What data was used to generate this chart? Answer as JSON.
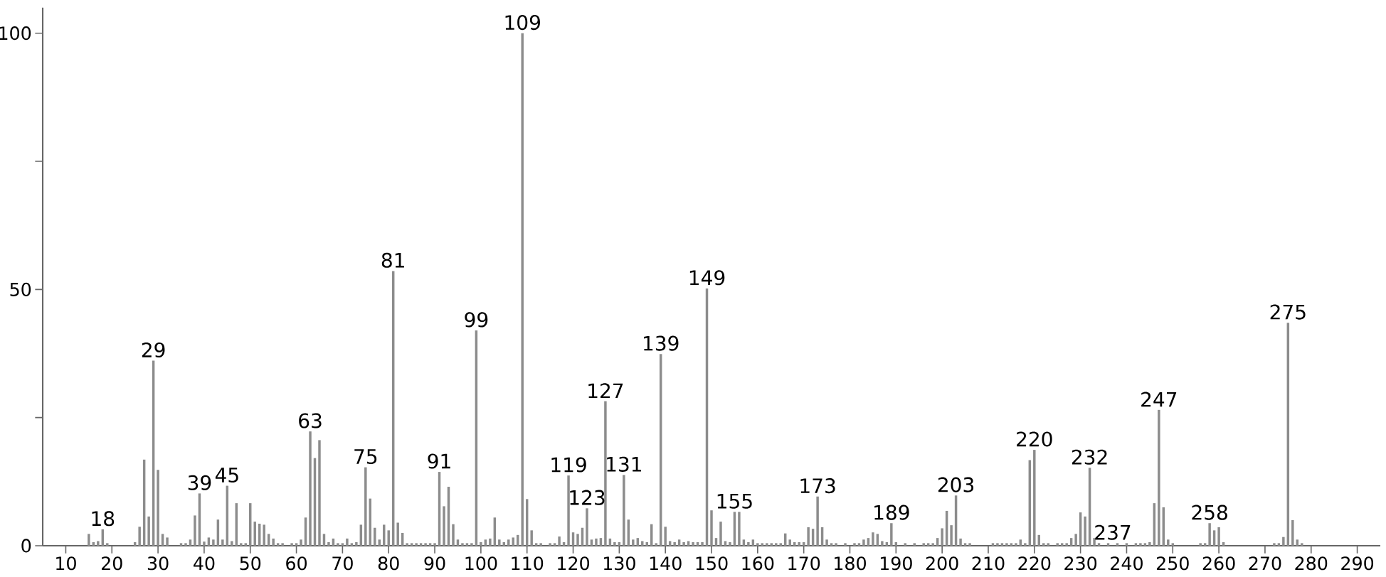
{
  "chart_data": {
    "type": "bar",
    "color": "#8c8c8c",
    "x": [
      15,
      16,
      17,
      18,
      19,
      25,
      26,
      27,
      28,
      29,
      30,
      31,
      32,
      35,
      36,
      37,
      38,
      39,
      40,
      41,
      42,
      43,
      44,
      45,
      46,
      47,
      48,
      49,
      50,
      51,
      52,
      53,
      54,
      55,
      56,
      57,
      59,
      60,
      61,
      62,
      63,
      64,
      65,
      66,
      67,
      68,
      69,
      70,
      71,
      72,
      73,
      74,
      75,
      76,
      77,
      78,
      79,
      80,
      81,
      82,
      83,
      84,
      85,
      86,
      87,
      88,
      89,
      90,
      91,
      92,
      93,
      94,
      95,
      96,
      97,
      98,
      99,
      100,
      101,
      102,
      103,
      104,
      105,
      106,
      107,
      108,
      109,
      110,
      111,
      112,
      113,
      115,
      116,
      117,
      118,
      119,
      120,
      121,
      122,
      123,
      124,
      125,
      126,
      127,
      128,
      129,
      130,
      131,
      132,
      133,
      134,
      135,
      136,
      137,
      138,
      139,
      140,
      141,
      142,
      143,
      144,
      145,
      146,
      147,
      148,
      149,
      150,
      151,
      152,
      153,
      154,
      155,
      156,
      157,
      158,
      159,
      160,
      161,
      162,
      163,
      164,
      165,
      166,
      167,
      168,
      169,
      170,
      171,
      172,
      173,
      174,
      175,
      176,
      177,
      179,
      181,
      182,
      183,
      184,
      185,
      186,
      187,
      188,
      189,
      190,
      192,
      194,
      196,
      197,
      198,
      199,
      200,
      201,
      202,
      203,
      204,
      205,
      206,
      211,
      212,
      213,
      214,
      215,
      216,
      217,
      218,
      219,
      220,
      221,
      222,
      223,
      225,
      226,
      227,
      228,
      229,
      230,
      231,
      232,
      233,
      234,
      236,
      238,
      240,
      242,
      243,
      244,
      245,
      246,
      247,
      248,
      249,
      250,
      256,
      257,
      258,
      259,
      260,
      261,
      272,
      273,
      274,
      275,
      276,
      277,
      278
    ],
    "values": [
      2.3,
      0.7,
      0.9,
      3.2,
      0.5,
      0.7,
      3.7,
      16.8,
      5.7,
      36.1,
      14.8,
      2.3,
      1.6,
      0.5,
      0.5,
      1.2,
      5.9,
      10.2,
      0.8,
      1.6,
      1.2,
      5.1,
      1.2,
      11.7,
      0.9,
      8.3,
      0.5,
      0.5,
      8.3,
      4.7,
      4.3,
      4.1,
      2.3,
      1.4,
      0.5,
      0.5,
      0.5,
      0.5,
      1.2,
      5.5,
      22.3,
      17.1,
      20.6,
      2.3,
      0.7,
      1.4,
      0.5,
      0.5,
      1.4,
      0.5,
      0.7,
      4.1,
      15.3,
      9.2,
      3.5,
      1.2,
      4.1,
      3.0,
      53.6,
      4.5,
      2.5,
      0.5,
      0.5,
      0.5,
      0.5,
      0.5,
      0.5,
      0.5,
      14.4,
      7.7,
      11.5,
      4.2,
      1.2,
      0.5,
      0.5,
      0.5,
      42.0,
      0.7,
      1.2,
      1.4,
      5.5,
      1.2,
      0.7,
      1.2,
      1.6,
      2.1,
      100,
      9.1,
      3.0,
      0.5,
      0.5,
      0.5,
      0.5,
      1.8,
      0.7,
      13.7,
      2.6,
      2.3,
      3.5,
      7.3,
      1.2,
      1.4,
      1.5,
      28.2,
      1.4,
      0.7,
      0.7,
      13.8,
      5.1,
      1.2,
      1.5,
      0.9,
      0.7,
      4.2,
      0.5,
      37.4,
      3.7,
      0.9,
      0.7,
      1.2,
      0.7,
      0.9,
      0.7,
      0.7,
      0.7,
      50.2,
      6.9,
      1.5,
      4.7,
      0.9,
      0.7,
      6.6,
      6.6,
      1.2,
      0.7,
      1.2,
      0.5,
      0.5,
      0.5,
      0.5,
      0.5,
      0.5,
      2.4,
      1.2,
      0.7,
      0.7,
      0.7,
      3.6,
      3.3,
      9.6,
      3.6,
      1.2,
      0.5,
      0.5,
      0.5,
      0.5,
      0.5,
      1.2,
      1.5,
      2.6,
      2.3,
      0.9,
      0.7,
      4.4,
      0.7,
      0.5,
      0.5,
      0.5,
      0.5,
      0.5,
      1.5,
      3.4,
      6.8,
      4.0,
      9.8,
      1.4,
      0.5,
      0.5,
      0.5,
      0.5,
      0.5,
      0.5,
      0.5,
      0.5,
      1.2,
      0.5,
      16.7,
      18.7,
      2.1,
      0.5,
      0.5,
      0.5,
      0.5,
      0.5,
      1.5,
      2.3,
      6.5,
      5.7,
      15.2,
      1.5,
      0.5,
      0.5,
      0.5,
      0.5,
      0.5,
      0.5,
      0.5,
      0.7,
      8.3,
      26.5,
      7.5,
      1.2,
      0.5,
      0.5,
      0.5,
      4.4,
      3.0,
      3.6,
      0.7,
      0.5,
      0.5,
      1.7,
      43.5,
      5.0,
      1.2,
      0.5
    ],
    "xlim": [
      5,
      295
    ],
    "xticks": [
      10,
      20,
      30,
      40,
      50,
      60,
      70,
      80,
      90,
      100,
      110,
      120,
      130,
      140,
      150,
      160,
      170,
      180,
      190,
      200,
      210,
      220,
      230,
      240,
      250,
      260,
      270,
      280,
      290
    ],
    "ylim": [
      0,
      105
    ],
    "yticks": [
      0,
      {
        "value": 25,
        "label": null
      },
      50,
      {
        "value": 75,
        "label": null
      },
      100
    ],
    "grid": false,
    "annotations": [
      {
        "text": "18",
        "x": 18,
        "y": 3.2
      },
      {
        "text": "29",
        "x": 29,
        "y": 36.1
      },
      {
        "text": "39",
        "x": 39,
        "y": 10.2
      },
      {
        "text": "45",
        "x": 45,
        "y": 11.7
      },
      {
        "text": "63",
        "x": 63,
        "y": 22.3
      },
      {
        "text": "75",
        "x": 75,
        "y": 15.3
      },
      {
        "text": "81",
        "x": 81,
        "y": 53.6
      },
      {
        "text": "91",
        "x": 91,
        "y": 14.4
      },
      {
        "text": "99",
        "x": 99,
        "y": 42.0
      },
      {
        "text": "109",
        "x": 109,
        "y": 100
      },
      {
        "text": "119",
        "x": 119,
        "y": 13.7
      },
      {
        "text": "123",
        "x": 123,
        "y": 7.3
      },
      {
        "text": "127",
        "x": 127,
        "y": 28.2
      },
      {
        "text": "131",
        "x": 131,
        "y": 13.8
      },
      {
        "text": "139",
        "x": 139,
        "y": 37.4
      },
      {
        "text": "149",
        "x": 149,
        "y": 50.2
      },
      {
        "text": "155",
        "x": 155,
        "y": 6.6
      },
      {
        "text": "173",
        "x": 173,
        "y": 9.6
      },
      {
        "text": "189",
        "x": 189,
        "y": 4.4
      },
      {
        "text": "203",
        "x": 203,
        "y": 9.8
      },
      {
        "text": "220",
        "x": 220,
        "y": 18.7
      },
      {
        "text": "232",
        "x": 232,
        "y": 15.2
      },
      {
        "text": "237",
        "x": 237,
        "y": 0.5
      },
      {
        "text": "247",
        "x": 247,
        "y": 26.5
      },
      {
        "text": "258",
        "x": 258,
        "y": 4.4
      },
      {
        "text": "275",
        "x": 275,
        "y": 43.5
      }
    ]
  }
}
